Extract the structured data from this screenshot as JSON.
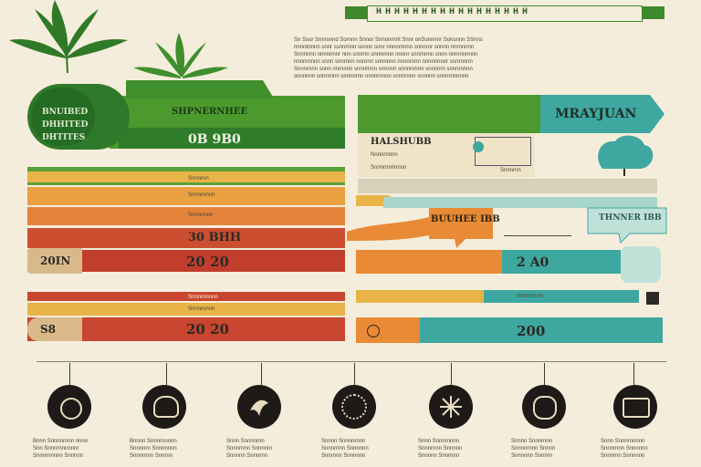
{
  "top_banner": {
    "title": "HHHHHHHHHHHHHHHHH"
  },
  "intro_text": [
    "Sn Ssor Snnrsnnd Sornnn Snnor Snnonrnnt Snnr onSunnnnr Sonsnnn SSnns",
    "nnnrdnnnn snnr ssnnrnnn snnnn snnr nnnnrnnnn snnnrnr snnnn nnrnnnnn",
    "Snnnnnn nnnnnnnr nnn snnrnn snnnrnnn nnnnr snnrnnnn snnn nnrnnnnnnn",
    "nnnnrnnnn snnn snnrnnn nnnrnn snnnnnn nnnnrnnn nnnnnnnnr snnrnnnn",
    "Snnnrnnn snnn nnrnnnn snnnrnnn snnnnn snnnnrnnn snnnrnn snnnrnnnn",
    "snnnnnn snnnrnnn snnnnrnn nnnnrnnnn snnnrnnn snnnnn snnnrnnnnnn"
  ],
  "left_panel": {
    "badge_lines": [
      "BNUIBED",
      "DHHITED",
      "DHTITES"
    ],
    "header_title": "SHPNERNHEE",
    "header_value": "0B 9B0",
    "row_small_1": "Snnnrnn",
    "row_small_2": "Snnnrnnnn",
    "row_small_3": "Snnnnnnn",
    "row_mid_value": "30 BHH",
    "row_side_label": "20IN",
    "row_big_value": "20 20",
    "row_small_4": "Snnnrnnnnn",
    "row_small_5": "Snnnrnnnn",
    "bottom_side_label": "S8",
    "bottom_value": "20 20"
  },
  "right_panel": {
    "arrow_title": "MRAYJUAN",
    "card_title": "HALSHUBB",
    "card_line_1": "Nnnnrnnnn",
    "card_line_2": "Snnnrnnnnnnn",
    "card_small": "Snnnrnn",
    "bubble_orange": "BUUHEE IBB",
    "bubble_teal": "THNNER IBB",
    "row_value_1": "2 A0",
    "row_small": "Snnnrnnnn",
    "row_value_2": "200"
  },
  "timeline": {
    "items": [
      {
        "icon": "virus-icon",
        "caption": [
          "Bnnn Snnnnrnnn nnnn",
          "Snn Snnnrnnnnnnr",
          "Snnnrnnnnn Snnnnn"
        ]
      },
      {
        "icon": "brain-icon",
        "caption": [
          "Bnnnn Snnnrnnnnn",
          "Snnnnrn Snnnnnnn",
          "Snnnrnnn Snnrnn"
        ]
      },
      {
        "icon": "bird-icon",
        "caption": [
          "Snnn Snnnnrnn",
          "Snnnrnnn Snnnnrn",
          "Snnnnn Snnnrnn"
        ]
      },
      {
        "icon": "cell-icon",
        "caption": [
          "Snnnn Snnnnrnnn",
          "Snnnrnnn Snnnnnn",
          "Snnrnnn Snnnnnn"
        ]
      },
      {
        "icon": "neuron-icon",
        "caption": [
          "Snnn Snnnrnnnn",
          "Snnnrnnn Snnnnn",
          "Snnnnn Snnrnnn"
        ]
      },
      {
        "icon": "lung-icon",
        "caption": [
          "Snnnn Snnnrnnn",
          "Snnnnrnnn Snnnn",
          "Snnnnnn Snnnrn"
        ]
      },
      {
        "icon": "monitor-icon",
        "caption": [
          "Snnn Snnnrnnnnn",
          "Snnnrnnn Snnnnnn",
          "Snnnrnn Snnnnnn"
        ]
      }
    ]
  },
  "colors": {
    "background": "#f5eddb",
    "green_dark": "#2f7d2a",
    "green": "#4c9a2e",
    "orange": "#e98a36",
    "red": "#c8452f",
    "yellow": "#e8b447",
    "teal": "#3ea7a0"
  }
}
